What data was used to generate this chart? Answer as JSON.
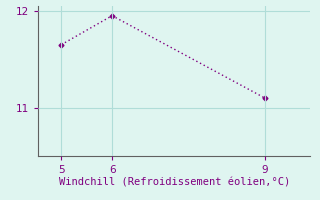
{
  "x": [
    5,
    6,
    9
  ],
  "y": [
    11.65,
    11.95,
    11.1
  ],
  "line_color": "#800080",
  "marker": "D",
  "marker_size": 2.5,
  "line_width": 1,
  "background_color": "#dff5f0",
  "grid_color": "#b0ddd8",
  "xlabel": "Windchill (Refroidissement éolien,°C)",
  "xlabel_color": "#800080",
  "xlabel_fontsize": 7.5,
  "tick_color": "#800080",
  "tick_fontsize": 7.5,
  "yticks": [
    11,
    12
  ],
  "xticks": [
    5,
    6,
    9
  ],
  "ylim": [
    10.5,
    12.05
  ],
  "xlim": [
    4.55,
    9.9
  ],
  "spine_color": "#606060"
}
